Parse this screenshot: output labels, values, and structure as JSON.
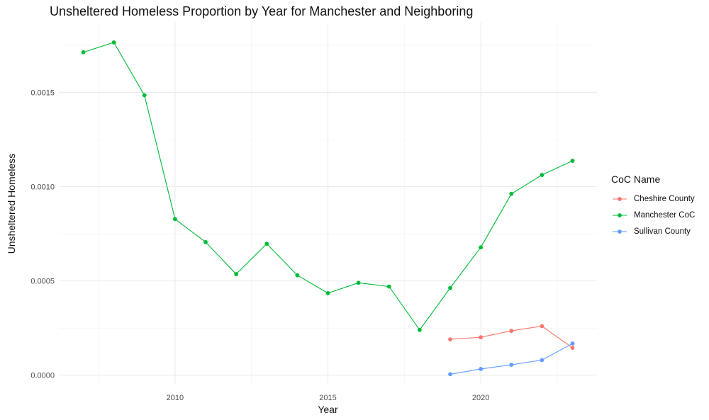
{
  "chart_data": {
    "type": "line",
    "title": "Unsheltered Homeless Proportion by Year for Manchester and Neighboring",
    "xlabel": "Year",
    "ylabel": "Unsheltered Homeless",
    "xlim": [
      2006.2,
      2023.8
    ],
    "ylim": [
      -5e-05,
      0.00187
    ],
    "x_ticks": [
      2010,
      2015,
      2020
    ],
    "x_tick_labels": [
      "2010",
      "2015",
      "2020"
    ],
    "y_ticks": [
      0,
      0.0005,
      0.001,
      0.0015
    ],
    "y_tick_labels": [
      "0.0000",
      "0.0005",
      "0.0010",
      "0.0015"
    ],
    "grid": true,
    "legend_title": "CoC Name",
    "legend_position": "right",
    "series": [
      {
        "name": "Cheshire County",
        "color": "#F8766D",
        "x": [
          2019,
          2020,
          2021,
          2022,
          2023
        ],
        "values": [
          0.00019,
          0.000201,
          0.000235,
          0.00026,
          0.000145
        ]
      },
      {
        "name": "Manchester CoC",
        "color": "#00BA38",
        "x": [
          2007,
          2008,
          2009,
          2010,
          2011,
          2012,
          2013,
          2014,
          2015,
          2016,
          2017,
          2018,
          2019,
          2020,
          2021,
          2022,
          2023
        ],
        "values": [
          0.001713,
          0.001765,
          0.001485,
          0.000828,
          0.000706,
          0.000536,
          0.000697,
          0.00053,
          0.000435,
          0.00049,
          0.00047,
          0.00024,
          0.000463,
          0.000678,
          0.000962,
          0.001062,
          0.001137
        ]
      },
      {
        "name": "Sullivan County",
        "color": "#619CFF",
        "x": [
          2019,
          2020,
          2021,
          2022,
          2023
        ],
        "values": [
          5e-06,
          3.3e-05,
          5.5e-05,
          8e-05,
          0.000168
        ]
      }
    ]
  }
}
